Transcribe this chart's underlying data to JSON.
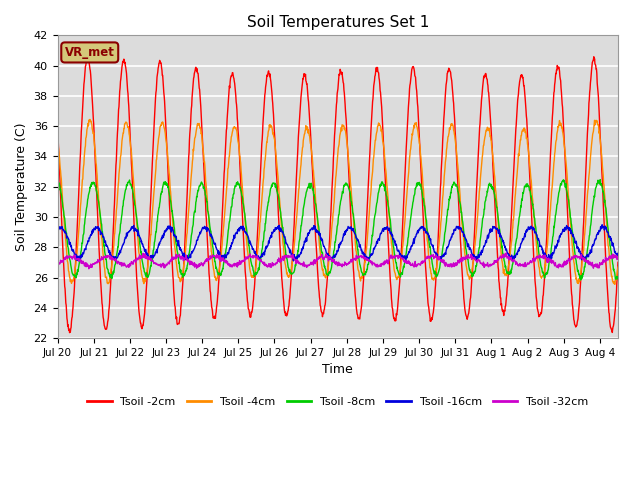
{
  "title": "Soil Temperatures Set 1",
  "xlabel": "Time",
  "ylabel": "Soil Temperature (C)",
  "ylim": [
    22,
    42
  ],
  "yticks": [
    22,
    24,
    26,
    28,
    30,
    32,
    34,
    36,
    38,
    40,
    42
  ],
  "bg_color": "#dcdcdc",
  "fig_color": "#ffffff",
  "grid_color": "#ffffff",
  "annotation_text": "VR_met",
  "annotation_bg": "#d4c87a",
  "annotation_border": "#8b0000",
  "series": [
    {
      "label": "Tsoil -2cm",
      "color": "#ff0000",
      "amplitude": 9.0,
      "mean": 31.5,
      "phase_hour": 14.0,
      "amp_trend": [
        1.0,
        1.0,
        0.98,
        0.97,
        0.92,
        0.88,
        0.9,
        0.87,
        0.91,
        0.92,
        0.93,
        0.92,
        0.87,
        0.87,
        0.95,
        1.0
      ]
    },
    {
      "label": "Tsoil -4cm",
      "color": "#ff8c00",
      "amplitude": 5.5,
      "mean": 31.0,
      "phase_hour": 15.5,
      "amp_trend": [
        0.95,
        0.98,
        0.95,
        0.95,
        0.93,
        0.9,
        0.92,
        0.88,
        0.92,
        0.93,
        0.93,
        0.93,
        0.88,
        0.88,
        0.95,
        0.98
      ]
    },
    {
      "label": "Tsoil -8cm",
      "color": "#00cc00",
      "amplitude": 3.2,
      "mean": 29.2,
      "phase_hour": 17.5,
      "amp_trend": [
        1.0,
        0.97,
        0.97,
        0.97,
        0.95,
        0.95,
        0.95,
        0.93,
        0.95,
        0.95,
        0.95,
        0.95,
        0.93,
        0.93,
        1.0,
        1.0
      ]
    },
    {
      "label": "Tsoil -16cm",
      "color": "#0000dd",
      "amplitude": 1.0,
      "mean": 28.3,
      "phase_hour": 20.0,
      "amp_trend": [
        1.0,
        1.0,
        1.0,
        1.0,
        1.0,
        1.0,
        1.0,
        1.0,
        1.0,
        1.0,
        1.0,
        1.0,
        1.0,
        1.0,
        1.0,
        1.0
      ]
    },
    {
      "label": "Tsoil -32cm",
      "color": "#cc00cc",
      "amplitude": 0.3,
      "mean": 27.1,
      "phase_hour": 3.0,
      "amp_trend": [
        1.0,
        1.0,
        1.0,
        1.0,
        1.0,
        1.0,
        1.0,
        1.0,
        1.0,
        1.0,
        1.0,
        1.0,
        1.0,
        1.0,
        1.0,
        1.0
      ]
    }
  ],
  "xtick_labels": [
    "Jul 20",
    "Jul 21",
    "Jul 22",
    "Jul 23",
    "Jul 24",
    "Jul 25",
    "Jul 26",
    "Jul 27",
    "Jul 28",
    "Jul 29",
    "Jul 30",
    "Jul 31",
    "Aug 1",
    "Aug 2",
    "Aug 3",
    "Aug 4"
  ],
  "n_days": 15.5,
  "points_per_day": 96
}
